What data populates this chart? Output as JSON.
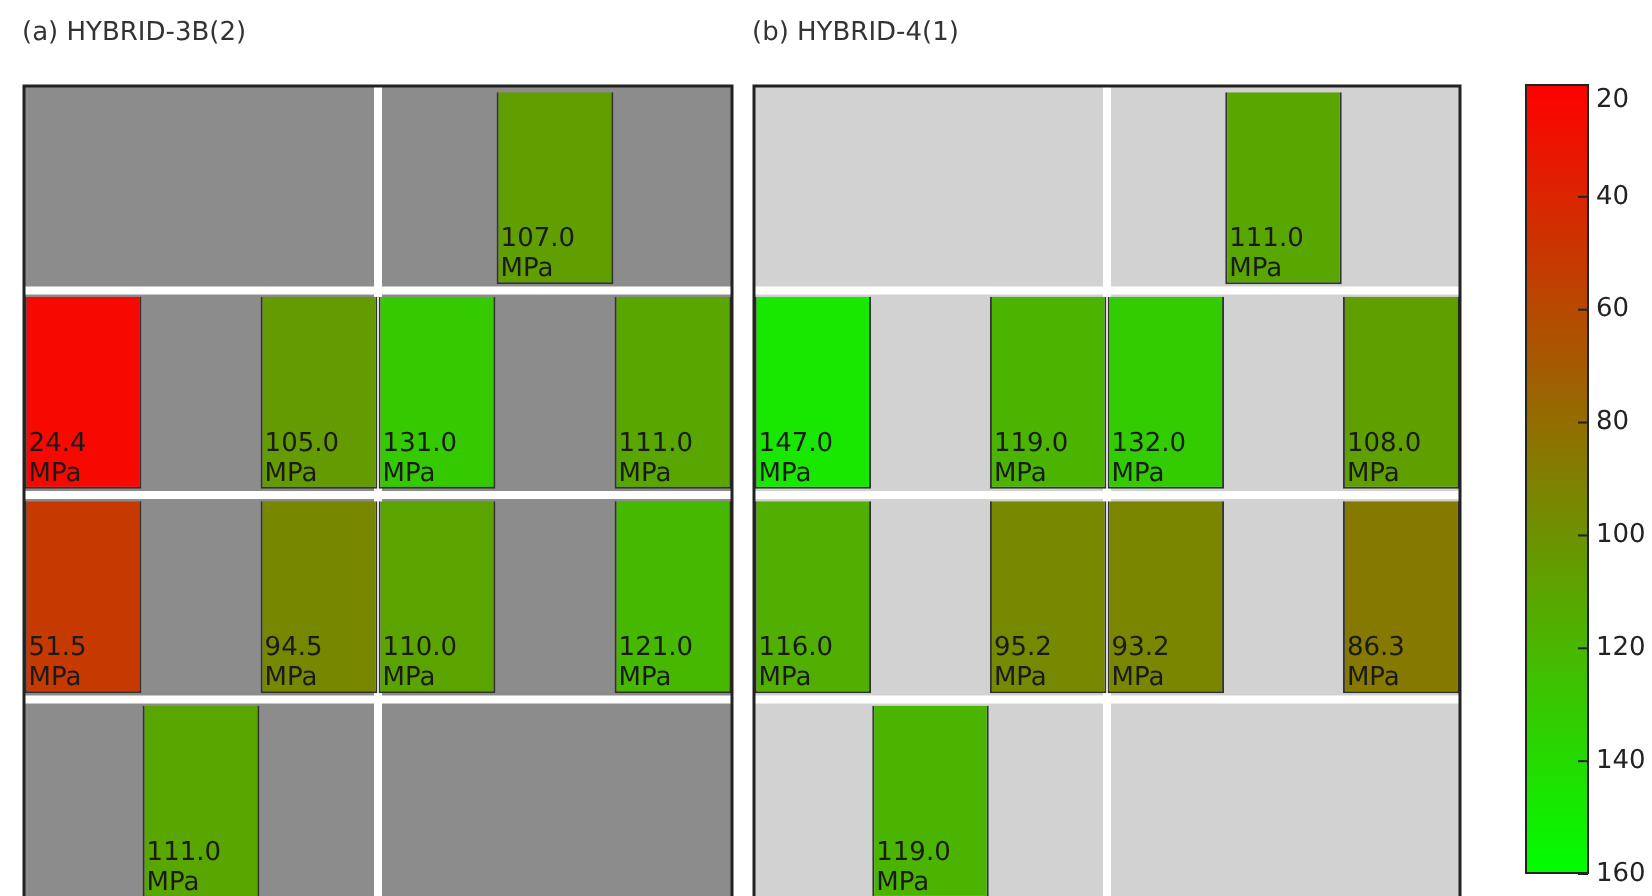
{
  "chart_data": [
    {
      "type": "heatmap",
      "title": "(a) HYBRID-3B(2)",
      "categories": [
        null,
        null,
        null,
        null,
        null,
        null
      ],
      "y_categories": [
        null,
        null,
        null,
        null
      ],
      "cells": [
        [
          null,
          null,
          null,
          null,
          107.0,
          null
        ],
        [
          24.4,
          null,
          105.0,
          131.0,
          null,
          111.0
        ],
        [
          51.5,
          null,
          94.5,
          110.0,
          null,
          121.0
        ],
        [
          null,
          111.0,
          null,
          null,
          null,
          null
        ]
      ],
      "cell_labels": [
        [
          null,
          null,
          null,
          null,
          "107.0 MPa",
          null
        ],
        [
          "24.4 MPa",
          null,
          "105.0 MPa",
          "131.0 MPa",
          null,
          "111.0 MPa"
        ],
        [
          "51.5 MPa",
          null,
          "94.5 MPa",
          "110.0 MPa",
          null,
          "121.0 MPa"
        ],
        [
          null,
          "111.0 MPa",
          null,
          null,
          null,
          null
        ]
      ],
      "grid": true,
      "tick_labels": false
    },
    {
      "type": "heatmap",
      "title": "(b) HYBRID-4(1)",
      "categories": [
        null,
        null,
        null,
        null,
        null,
        null
      ],
      "y_categories": [
        null,
        null,
        null,
        null
      ],
      "cells": [
        [
          null,
          null,
          null,
          null,
          111.0,
          null
        ],
        [
          147.0,
          null,
          119.0,
          132.0,
          null,
          108.0
        ],
        [
          116.0,
          null,
          95.2,
          93.2,
          null,
          86.3
        ],
        [
          null,
          119.0,
          null,
          null,
          null,
          null
        ]
      ],
      "cell_labels": [
        [
          null,
          null,
          null,
          null,
          "111.0 MPa",
          null
        ],
        [
          "147.0 MPa",
          null,
          "119.0 MPa",
          "132.0 MPa",
          null,
          "108.0 MPa"
        ],
        [
          "116.0 MPa",
          null,
          "95.2 MPa",
          "93.2 MPa",
          null,
          "86.3 MPa"
        ],
        [
          null,
          "119.0 MPa",
          null,
          null,
          null,
          null
        ]
      ],
      "clim": [
        20,
        160
      ],
      "cticks": [
        20,
        40,
        60,
        80,
        100,
        120,
        140,
        160
      ],
      "grid": true,
      "tick_labels": false
    }
  ]
}
